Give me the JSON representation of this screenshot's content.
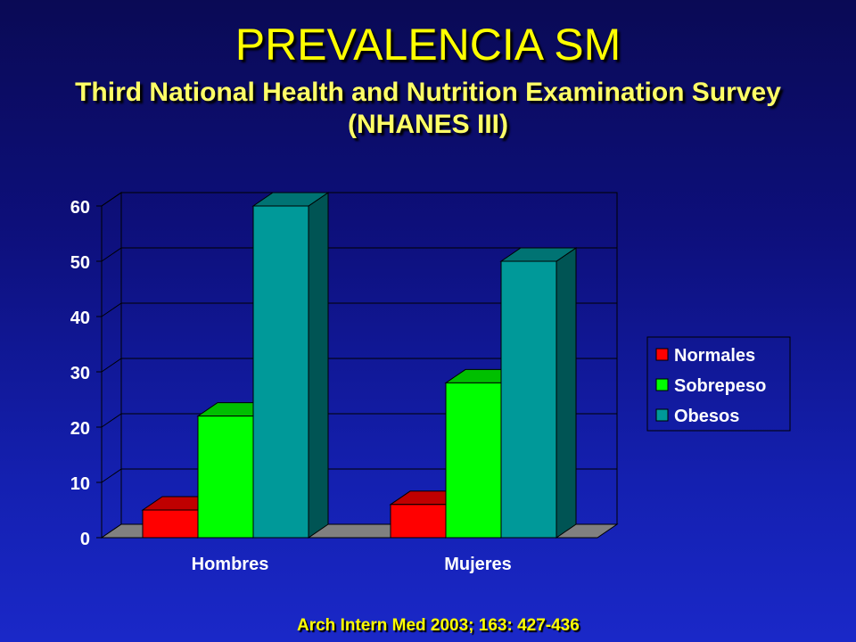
{
  "title": "PREVALENCIA SM",
  "subtitle_line1": "Third National Health and Nutrition Examination Survey",
  "subtitle_line2": "(NHANES III)",
  "citation": "Arch Intern Med 2003; 163: 427-436",
  "colors": {
    "normales": "#ff0000",
    "sobrepeso": "#00ff00",
    "obesos": "#009999"
  },
  "chart_data": {
    "type": "bar",
    "style": "3d-clustered",
    "categories": [
      "Hombres",
      "Mujeres"
    ],
    "series": [
      {
        "name": "Normales",
        "values": [
          5,
          6
        ]
      },
      {
        "name": "Sobrepeso",
        "values": [
          22,
          28
        ]
      },
      {
        "name": "Obesos",
        "values": [
          60,
          50
        ]
      }
    ],
    "y_ticks": [
      "0",
      "10",
      "20",
      "30",
      "40",
      "50",
      "60"
    ],
    "ylim": [
      0,
      60
    ],
    "grid": true,
    "legend_position": "right"
  }
}
